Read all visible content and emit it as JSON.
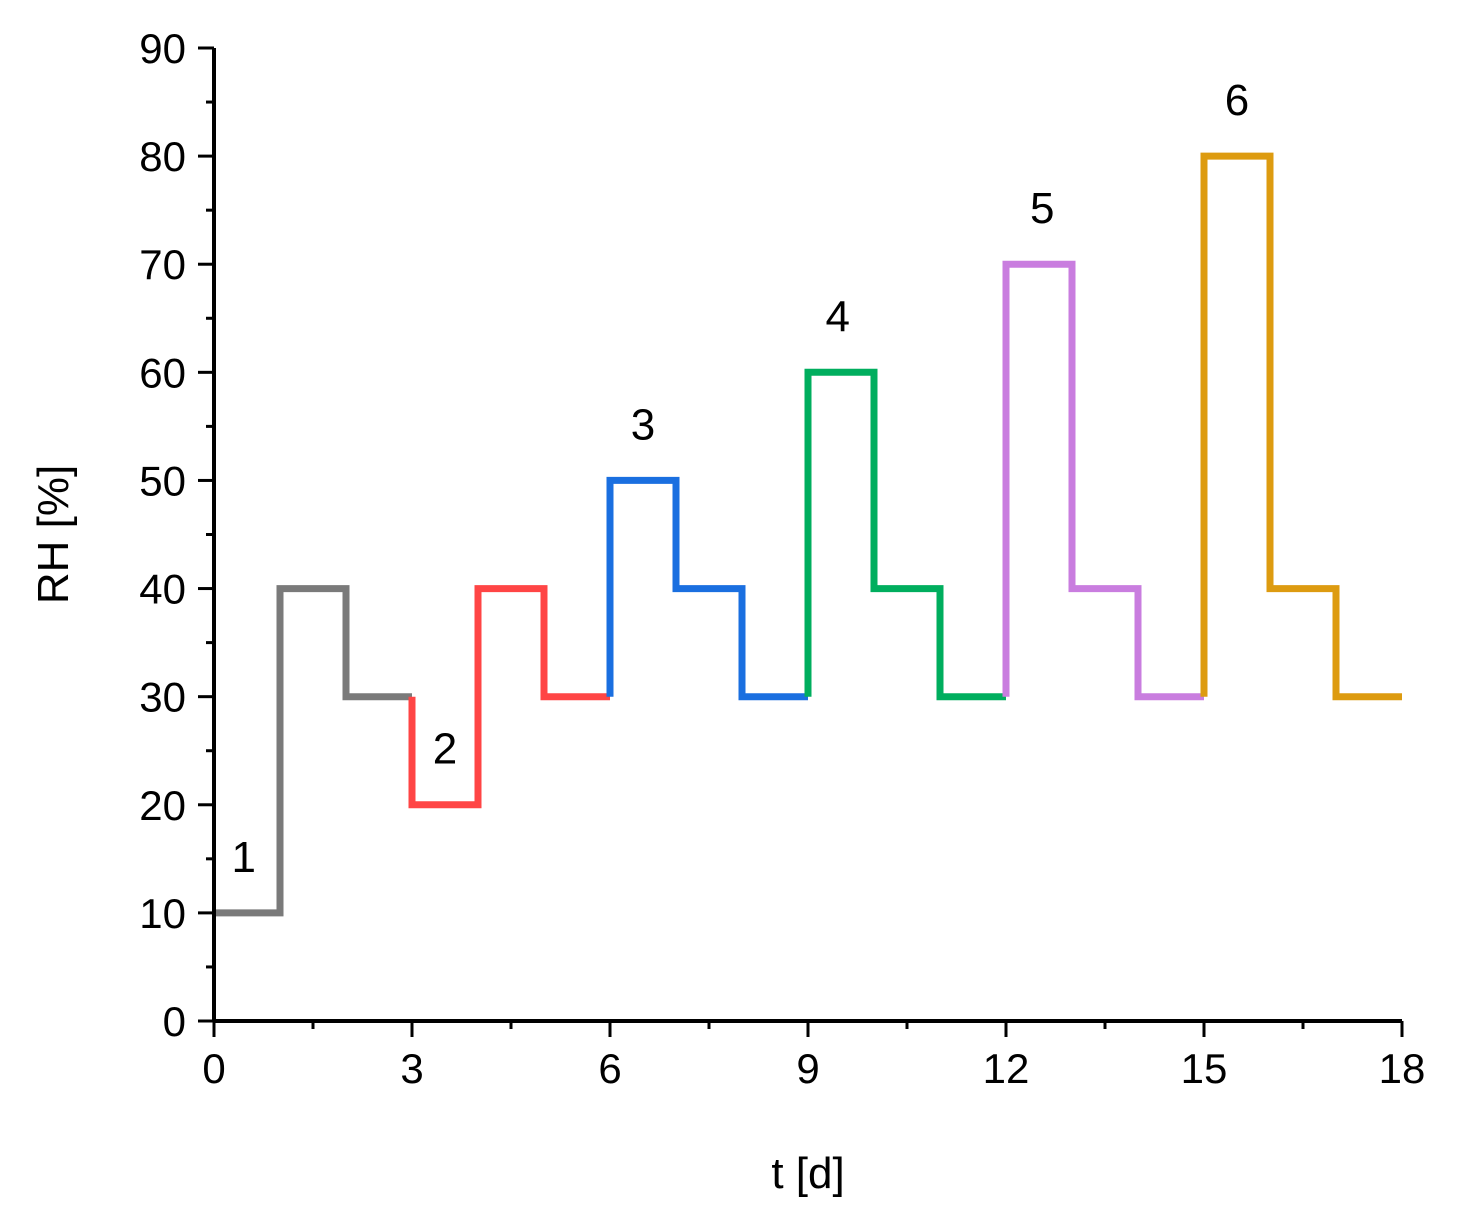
{
  "chart_data": {
    "type": "line",
    "xlabel": "t [d]",
    "ylabel": "RH [%]",
    "xlim": [
      0,
      18
    ],
    "ylim": [
      0,
      90
    ],
    "x_ticks": [
      "0",
      "3",
      "6",
      "9",
      "12",
      "15",
      "18"
    ],
    "y_ticks": [
      "0",
      "10",
      "20",
      "30",
      "40",
      "50",
      "60",
      "70",
      "80",
      "90"
    ],
    "grid": false,
    "series": [
      {
        "label": "1",
        "color": "#7a7a7a",
        "points": [
          [
            0,
            10
          ],
          [
            1,
            10
          ],
          [
            1,
            40
          ],
          [
            2,
            40
          ],
          [
            2,
            30
          ],
          [
            3,
            30
          ]
        ]
      },
      {
        "label": "2",
        "color": "#ff4545",
        "points": [
          [
            3,
            30
          ],
          [
            3,
            20
          ],
          [
            4,
            20
          ],
          [
            4,
            40
          ],
          [
            5,
            40
          ],
          [
            5,
            30
          ],
          [
            6,
            30
          ]
        ]
      },
      {
        "label": "3",
        "color": "#1a6fe0",
        "points": [
          [
            6,
            30
          ],
          [
            6,
            50
          ],
          [
            7,
            50
          ],
          [
            7,
            40
          ],
          [
            8,
            40
          ],
          [
            8,
            30
          ],
          [
            9,
            30
          ]
        ]
      },
      {
        "label": "4",
        "color": "#00ae5e",
        "points": [
          [
            9,
            30
          ],
          [
            9,
            60
          ],
          [
            10,
            60
          ],
          [
            10,
            40
          ],
          [
            11,
            40
          ],
          [
            11,
            30
          ],
          [
            12,
            30
          ]
        ]
      },
      {
        "label": "5",
        "color": "#c97ddf",
        "points": [
          [
            12,
            30
          ],
          [
            12,
            70
          ],
          [
            13,
            70
          ],
          [
            13,
            40
          ],
          [
            14,
            40
          ],
          [
            14,
            30
          ],
          [
            15,
            30
          ]
        ]
      },
      {
        "label": "6",
        "color": "#dd9b10",
        "points": [
          [
            15,
            30
          ],
          [
            15,
            80
          ],
          [
            16,
            80
          ],
          [
            16,
            40
          ],
          [
            17,
            40
          ],
          [
            17,
            30
          ],
          [
            18,
            30
          ]
        ]
      }
    ],
    "annotations": [
      {
        "text": "1",
        "x": 0.45,
        "y": 13.8
      },
      {
        "text": "2",
        "x": 3.5,
        "y": 23.8
      },
      {
        "text": "3",
        "x": 6.5,
        "y": 53.8
      },
      {
        "text": "4",
        "x": 9.45,
        "y": 63.8
      },
      {
        "text": "5",
        "x": 12.55,
        "y": 73.8
      },
      {
        "text": "6",
        "x": 15.5,
        "y": 83.8
      }
    ]
  }
}
